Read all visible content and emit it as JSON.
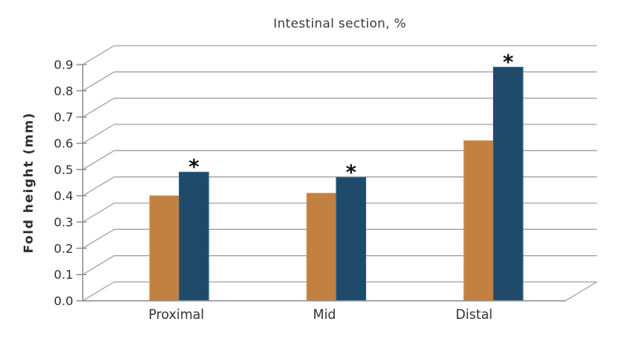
{
  "title": "Intestinal section, %",
  "y_axis_label": "Fold height (mm)",
  "y_ticks": [
    "0.0",
    "0.1",
    "0.2",
    "0.3",
    "0.4",
    "0.5",
    "0.6",
    "0.7",
    "0.8",
    "0.9"
  ],
  "chart_data": {
    "type": "bar",
    "title": "Intestinal section, %",
    "categories": [
      "Proximal",
      "Mid",
      "Distal"
    ],
    "series": [
      {
        "name": "orange-bars",
        "color": "#c28140",
        "edge_color": "#cfa06b",
        "values": [
          0.4,
          0.41,
          0.61
        ]
      },
      {
        "name": "blue-bars",
        "color": "#1f4a6a",
        "edge_color": "#2e6a92",
        "values": [
          0.49,
          0.47,
          0.89
        ]
      }
    ],
    "xlabel": "",
    "ylabel": "Fold height (mm)",
    "ylim": [
      0.0,
      0.9
    ],
    "ytick_step": 0.1,
    "grid": true,
    "legend_position": "none",
    "style": "pseudo-3d oblique depth, gridlines on back wall",
    "annotations": [
      {
        "series": "blue-bars",
        "category": "Proximal",
        "text": "*"
      },
      {
        "series": "blue-bars",
        "category": "Mid",
        "text": "*"
      },
      {
        "series": "blue-bars",
        "category": "Distal",
        "text": "*"
      }
    ]
  },
  "colors": {
    "background": "#ffffff",
    "bar_orange": "#c28140",
    "bar_blue": "#1f4a6a",
    "gridline": "#a4a4a4",
    "axis": "#8e8e8e",
    "title_text": "#3a3a3a",
    "tick_text": "#2f2f2f",
    "asterisk": "#0d0d0d"
  }
}
